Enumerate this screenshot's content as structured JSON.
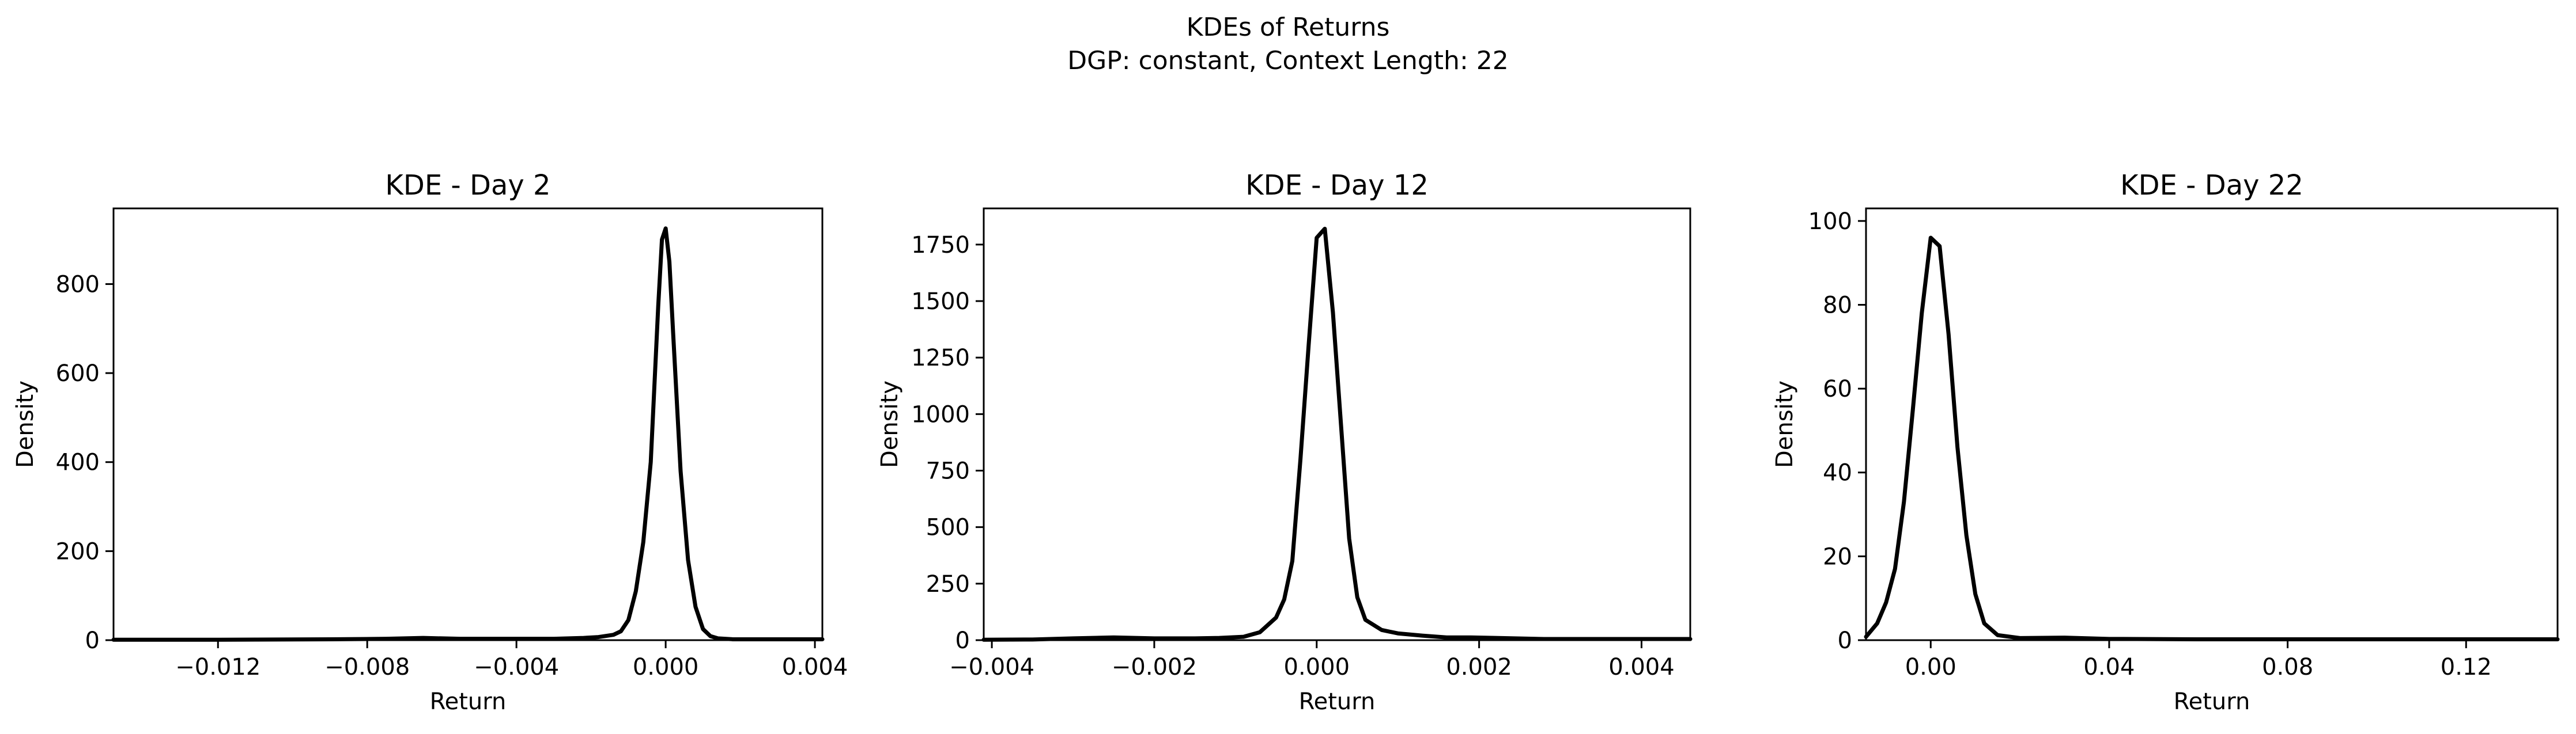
{
  "figure": {
    "title_line1": "KDEs of Returns",
    "title_line2": "DGP: constant, Context Length: 22"
  },
  "chart_data": [
    {
      "type": "line",
      "title": "KDE - Day 2",
      "xlabel": "Return",
      "ylabel": "Density",
      "xlim": [
        -0.0148,
        0.0042
      ],
      "ylim": [
        0,
        970
      ],
      "xticks": [
        -0.012,
        -0.008,
        -0.004,
        0.0,
        0.004
      ],
      "xtick_labels": [
        "−0.012",
        "−0.008",
        "−0.004",
        "0.000",
        "0.004"
      ],
      "yticks": [
        0,
        200,
        400,
        600,
        800
      ],
      "ytick_labels": [
        "0",
        "200",
        "400",
        "600",
        "800"
      ],
      "grid": false,
      "legend": "none",
      "line_color": "#000000",
      "series": [
        {
          "x": [
            -0.0148,
            -0.012,
            -0.009,
            -0.0075,
            -0.0065,
            -0.0055,
            -0.004,
            -0.003,
            -0.0022,
            -0.0018,
            -0.0014,
            -0.0012,
            -0.001,
            -0.0008,
            -0.0006,
            -0.0004,
            -0.0002,
            -0.0001,
            0.0,
            0.0001,
            0.0002,
            0.0004,
            0.0006,
            0.0008,
            0.001,
            0.0012,
            0.0014,
            0.0018,
            0.0025,
            0.0035,
            0.0042
          ],
          "y": [
            1,
            1,
            2,
            3,
            5,
            3,
            3,
            3,
            5,
            7,
            12,
            20,
            45,
            110,
            220,
            400,
            750,
            900,
            925,
            850,
            690,
            380,
            180,
            75,
            25,
            9,
            4,
            2,
            2,
            2,
            2
          ]
        }
      ]
    },
    {
      "type": "line",
      "title": "KDE - Day 12",
      "xlabel": "Return",
      "ylabel": "Density",
      "xlim": [
        -0.0041,
        0.0046
      ],
      "ylim": [
        0,
        1910
      ],
      "xticks": [
        -0.004,
        -0.002,
        0.0,
        0.002,
        0.004
      ],
      "xtick_labels": [
        "−0.004",
        "−0.002",
        "0.000",
        "0.002",
        "0.004"
      ],
      "yticks": [
        0,
        250,
        500,
        750,
        1000,
        1250,
        1500,
        1750
      ],
      "ytick_labels": [
        "0",
        "250",
        "500",
        "750",
        "1000",
        "1250",
        "1500",
        "1750"
      ],
      "grid": false,
      "legend": "none",
      "line_color": "#000000",
      "series": [
        {
          "x": [
            -0.0041,
            -0.0035,
            -0.003,
            -0.0025,
            -0.002,
            -0.0015,
            -0.0012,
            -0.0009,
            -0.0007,
            -0.0005,
            -0.0004,
            -0.0003,
            -0.0002,
            -0.0001,
            0.0,
            0.0001,
            0.0002,
            0.0003,
            0.0004,
            0.0005,
            0.0006,
            0.0008,
            0.001,
            0.0013,
            0.0016,
            0.0019,
            0.0022,
            0.0028,
            0.0035,
            0.004,
            0.0046
          ],
          "y": [
            2,
            3,
            8,
            12,
            8,
            8,
            10,
            15,
            35,
            100,
            180,
            350,
            800,
            1300,
            1780,
            1820,
            1450,
            950,
            450,
            190,
            90,
            45,
            30,
            20,
            12,
            12,
            10,
            5,
            5,
            5,
            5
          ]
        }
      ]
    },
    {
      "type": "line",
      "title": "KDE - Day 22",
      "xlabel": "Return",
      "ylabel": "Density",
      "xlim": [
        -0.0145,
        0.1405
      ],
      "ylim": [
        0,
        103
      ],
      "xticks": [
        0.0,
        0.04,
        0.08,
        0.12
      ],
      "xtick_labels": [
        "0.00",
        "0.04",
        "0.08",
        "0.12"
      ],
      "yticks": [
        0,
        20,
        40,
        60,
        80,
        100
      ],
      "ytick_labels": [
        "0",
        "20",
        "40",
        "60",
        "80",
        "100"
      ],
      "grid": false,
      "legend": "none",
      "line_color": "#000000",
      "series": [
        {
          "x": [
            -0.0145,
            -0.012,
            -0.01,
            -0.008,
            -0.006,
            -0.004,
            -0.002,
            0.0,
            0.002,
            0.004,
            0.006,
            0.008,
            0.01,
            0.012,
            0.015,
            0.02,
            0.03,
            0.04,
            0.06,
            0.08,
            0.1,
            0.12,
            0.1405
          ],
          "y": [
            0.8,
            4,
            9,
            17,
            33,
            55,
            78,
            96,
            94,
            73,
            46,
            25,
            11,
            4,
            1.2,
            0.5,
            0.6,
            0.3,
            0.2,
            0.2,
            0.2,
            0.2,
            0.2
          ]
        }
      ]
    }
  ]
}
